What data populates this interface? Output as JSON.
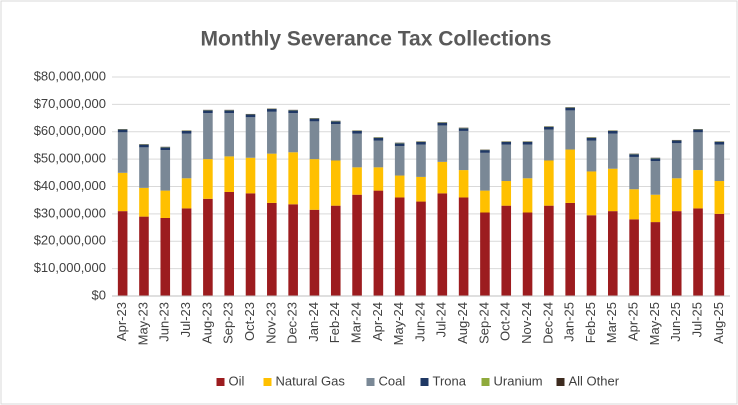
{
  "chart_data": {
    "type": "stacked_bar",
    "title": "Monthly Severance Tax Collections",
    "categories": [
      "Apr-23",
      "May-23",
      "Jun-23",
      "Jul-23",
      "Aug-23",
      "Sep-23",
      "Oct-23",
      "Nov-23",
      "Dec-23",
      "Jan-24",
      "Feb-24",
      "Mar-24",
      "Apr-24",
      "May-24",
      "Jun-24",
      "Jul-24",
      "Aug-24",
      "Sep-24",
      "Oct-24",
      "Nov-24",
      "Dec-24",
      "Jan-25",
      "Feb-25",
      "Mar-25",
      "Apr-25",
      "May-25",
      "Jun-25",
      "Jul-25",
      "Aug-25"
    ],
    "series": [
      {
        "name": "Oil",
        "color": "#9c1c1f",
        "values": [
          31000000,
          29000000,
          28500000,
          32000000,
          35500000,
          38000000,
          37500000,
          34000000,
          33500000,
          31500000,
          33000000,
          37000000,
          38500000,
          36000000,
          34500000,
          37500000,
          36000000,
          30500000,
          33000000,
          30500000,
          33000000,
          34000000,
          29500000,
          31000000,
          28000000,
          27000000,
          31000000,
          32000000,
          30000000
        ]
      },
      {
        "name": "Natural Gas",
        "color": "#ffc000",
        "values": [
          14000000,
          10500000,
          10000000,
          11000000,
          14500000,
          13000000,
          13000000,
          18000000,
          19000000,
          18500000,
          16500000,
          10000000,
          8500000,
          8000000,
          9000000,
          11500000,
          10000000,
          8000000,
          9000000,
          12500000,
          16500000,
          19500000,
          16000000,
          15500000,
          11000000,
          10000000,
          12000000,
          14000000,
          12000000
        ]
      },
      {
        "name": "Coal",
        "color": "#7a8896",
        "values": [
          14800000,
          14800000,
          14800000,
          16300000,
          16800000,
          15800000,
          14800000,
          15300000,
          14300000,
          13800000,
          13300000,
          12300000,
          9800000,
          10800000,
          11800000,
          13300000,
          14300000,
          13800000,
          13300000,
          12300000,
          11300000,
          14300000,
          11300000,
          12800000,
          11800000,
          12300000,
          12800000,
          13800000,
          13300000
        ]
      },
      {
        "name": "Trona",
        "color": "#1f3864",
        "values": [
          1000000,
          1000000,
          1000000,
          1000000,
          1000000,
          1000000,
          1000000,
          1000000,
          1000000,
          1000000,
          1000000,
          1000000,
          1000000,
          1000000,
          1000000,
          1000000,
          1000000,
          1000000,
          1000000,
          1000000,
          1000000,
          1000000,
          1000000,
          1000000,
          1000000,
          1000000,
          1000000,
          1000000,
          1000000
        ]
      },
      {
        "name": "Uranium",
        "color": "#8faa3c",
        "values": [
          100000,
          100000,
          100000,
          100000,
          100000,
          100000,
          100000,
          100000,
          100000,
          100000,
          100000,
          100000,
          100000,
          100000,
          100000,
          100000,
          100000,
          100000,
          100000,
          100000,
          100000,
          100000,
          100000,
          100000,
          100000,
          100000,
          100000,
          100000,
          100000
        ]
      },
      {
        "name": "All Other",
        "color": "#3d2b1f",
        "values": [
          100000,
          100000,
          100000,
          100000,
          100000,
          100000,
          100000,
          100000,
          100000,
          100000,
          100000,
          100000,
          100000,
          100000,
          100000,
          100000,
          100000,
          100000,
          100000,
          100000,
          100000,
          100000,
          100000,
          100000,
          100000,
          100000,
          100000,
          100000,
          100000
        ]
      }
    ],
    "ylim": [
      0,
      80000000
    ],
    "yticks": [
      {
        "value": 0,
        "label": "$0"
      },
      {
        "value": 10000000,
        "label": "$10,000,000"
      },
      {
        "value": 20000000,
        "label": "$20,000,000"
      },
      {
        "value": 30000000,
        "label": "$30,000,000"
      },
      {
        "value": 40000000,
        "label": "$40,000,000"
      },
      {
        "value": 50000000,
        "label": "$50,000,000"
      },
      {
        "value": 60000000,
        "label": "$60,000,000"
      },
      {
        "value": 70000000,
        "label": "$70,000,000"
      },
      {
        "value": 80000000,
        "label": "$80,000,000"
      }
    ],
    "grid": true,
    "legend": "bottom"
  }
}
